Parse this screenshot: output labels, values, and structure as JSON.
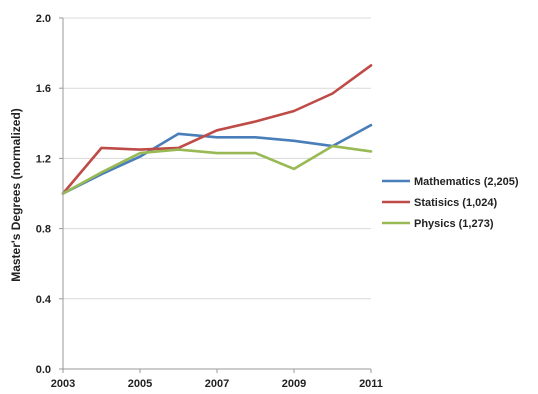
{
  "chart_data": {
    "type": "line",
    "title": "",
    "xlabel": "",
    "ylabel": "Master's Degrees (normalized)",
    "x": [
      2003,
      2004,
      2005,
      2006,
      2007,
      2008,
      2009,
      2010,
      2011
    ],
    "xticks": [
      "2003",
      "2005",
      "2007",
      "2009",
      "2011"
    ],
    "xlim": [
      2003,
      2011
    ],
    "ylim": [
      0,
      2.0
    ],
    "yticks": [
      "0.0",
      "0.4",
      "0.8",
      "1.2",
      "1.6",
      "2.0"
    ],
    "grid": "horizontal",
    "legend_position": "right",
    "series": [
      {
        "name": "Mathematics (2,205)",
        "color": "#4a7ebb",
        "values": [
          1.0,
          1.11,
          1.21,
          1.34,
          1.32,
          1.32,
          1.3,
          1.27,
          1.39
        ]
      },
      {
        "name": "Statisics (1,024)",
        "color": "#be4b48",
        "values": [
          1.0,
          1.26,
          1.25,
          1.26,
          1.36,
          1.41,
          1.47,
          1.57,
          1.73
        ]
      },
      {
        "name": "Physics (1,273)",
        "color": "#98b954",
        "values": [
          1.0,
          1.12,
          1.23,
          1.25,
          1.23,
          1.23,
          1.14,
          1.27,
          1.24
        ]
      }
    ]
  }
}
